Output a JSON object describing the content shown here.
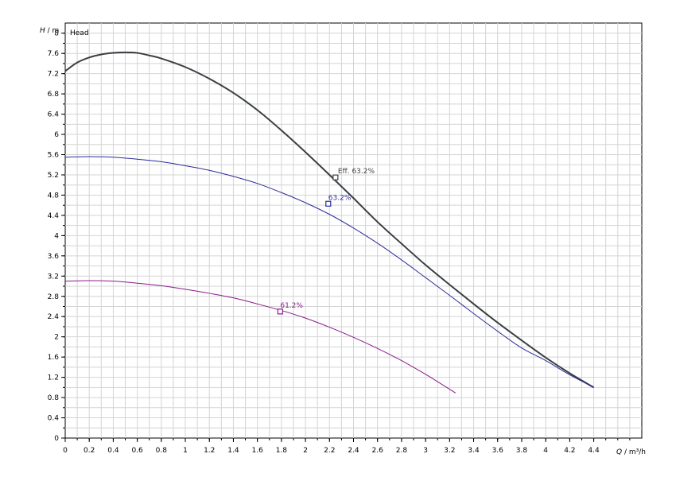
{
  "chart_data": {
    "type": "line",
    "title": "Head",
    "xlabel_var": "Q",
    "xlabel_unit": " / m³/h",
    "ylabel_var": "H",
    "ylabel_unit": " / m",
    "xlim": [
      0,
      4.8
    ],
    "ylim": [
      0,
      8.2
    ],
    "xticks": [
      "0",
      "0.2",
      "0.4",
      "0.6",
      "0.8",
      "1",
      "1.2",
      "1.4",
      "1.6",
      "1.8",
      "2",
      "2.2",
      "2.4",
      "2.6",
      "2.8",
      "3",
      "3.2",
      "3.4",
      "3.6",
      "3.8",
      "4",
      "4.2",
      "4.4"
    ],
    "yticks": [
      "0",
      "0.4",
      "0.8",
      "1.2",
      "1.6",
      "2",
      "2.4",
      "2.8",
      "3.2",
      "3.6",
      "4",
      "4.4",
      "4.8",
      "5.2",
      "5.6",
      "6",
      "6.4",
      "6.8",
      "7.2",
      "7.6",
      "8"
    ],
    "grid": true,
    "series": [
      {
        "key": "max-curve",
        "color": "#3a3f44",
        "x": [
          0,
          0.1,
          0.2,
          0.3,
          0.4,
          0.5,
          0.6,
          0.7,
          0.8,
          1.0,
          1.2,
          1.4,
          1.6,
          1.8,
          2.0,
          2.2,
          2.4,
          2.6,
          2.8,
          3.0,
          3.2,
          3.4,
          3.6,
          3.8,
          4.0,
          4.2,
          4.4
        ],
        "y": [
          7.25,
          7.42,
          7.52,
          7.58,
          7.61,
          7.62,
          7.61,
          7.56,
          7.5,
          7.33,
          7.1,
          6.82,
          6.48,
          6.08,
          5.65,
          5.2,
          4.74,
          4.27,
          3.84,
          3.42,
          3.03,
          2.65,
          2.28,
          1.93,
          1.59,
          1.28,
          1.0
        ]
      },
      {
        "key": "mid-curve",
        "color": "#2b2b9a",
        "x": [
          0,
          0.2,
          0.4,
          0.6,
          0.8,
          1.0,
          1.2,
          1.4,
          1.6,
          1.8,
          2.0,
          2.2,
          2.4,
          2.6,
          2.8,
          3.0,
          3.2,
          3.4,
          3.6,
          3.8,
          4.0,
          4.2,
          4.4
        ],
        "y": [
          5.55,
          5.56,
          5.55,
          5.51,
          5.46,
          5.38,
          5.29,
          5.17,
          5.03,
          4.85,
          4.65,
          4.42,
          4.15,
          3.85,
          3.52,
          3.17,
          2.82,
          2.46,
          2.11,
          1.78,
          1.53,
          1.25,
          1.0
        ]
      },
      {
        "key": "min-curve",
        "color": "#8a1a8a",
        "x": [
          0,
          0.2,
          0.4,
          0.6,
          0.8,
          1.0,
          1.2,
          1.4,
          1.6,
          1.8,
          2.0,
          2.2,
          2.4,
          2.6,
          2.8,
          3.0,
          3.25
        ],
        "y": [
          3.1,
          3.11,
          3.1,
          3.06,
          3.01,
          2.94,
          2.86,
          2.77,
          2.65,
          2.52,
          2.37,
          2.19,
          1.99,
          1.77,
          1.53,
          1.26,
          0.89
        ]
      }
    ],
    "markers": [
      {
        "x": 2.25,
        "y": 5.15,
        "label": "Eff.  63.2%",
        "color": "#3a3f44",
        "label_color": "#444444"
      },
      {
        "x": 2.19,
        "y": 4.63,
        "label": "63.2%",
        "color": "#2b2b9a",
        "label_color": "#2b2b9a"
      },
      {
        "x": 1.79,
        "y": 2.5,
        "label": "61.2%",
        "color": "#8a1a8a",
        "label_color": "#8a1a8a"
      }
    ]
  }
}
